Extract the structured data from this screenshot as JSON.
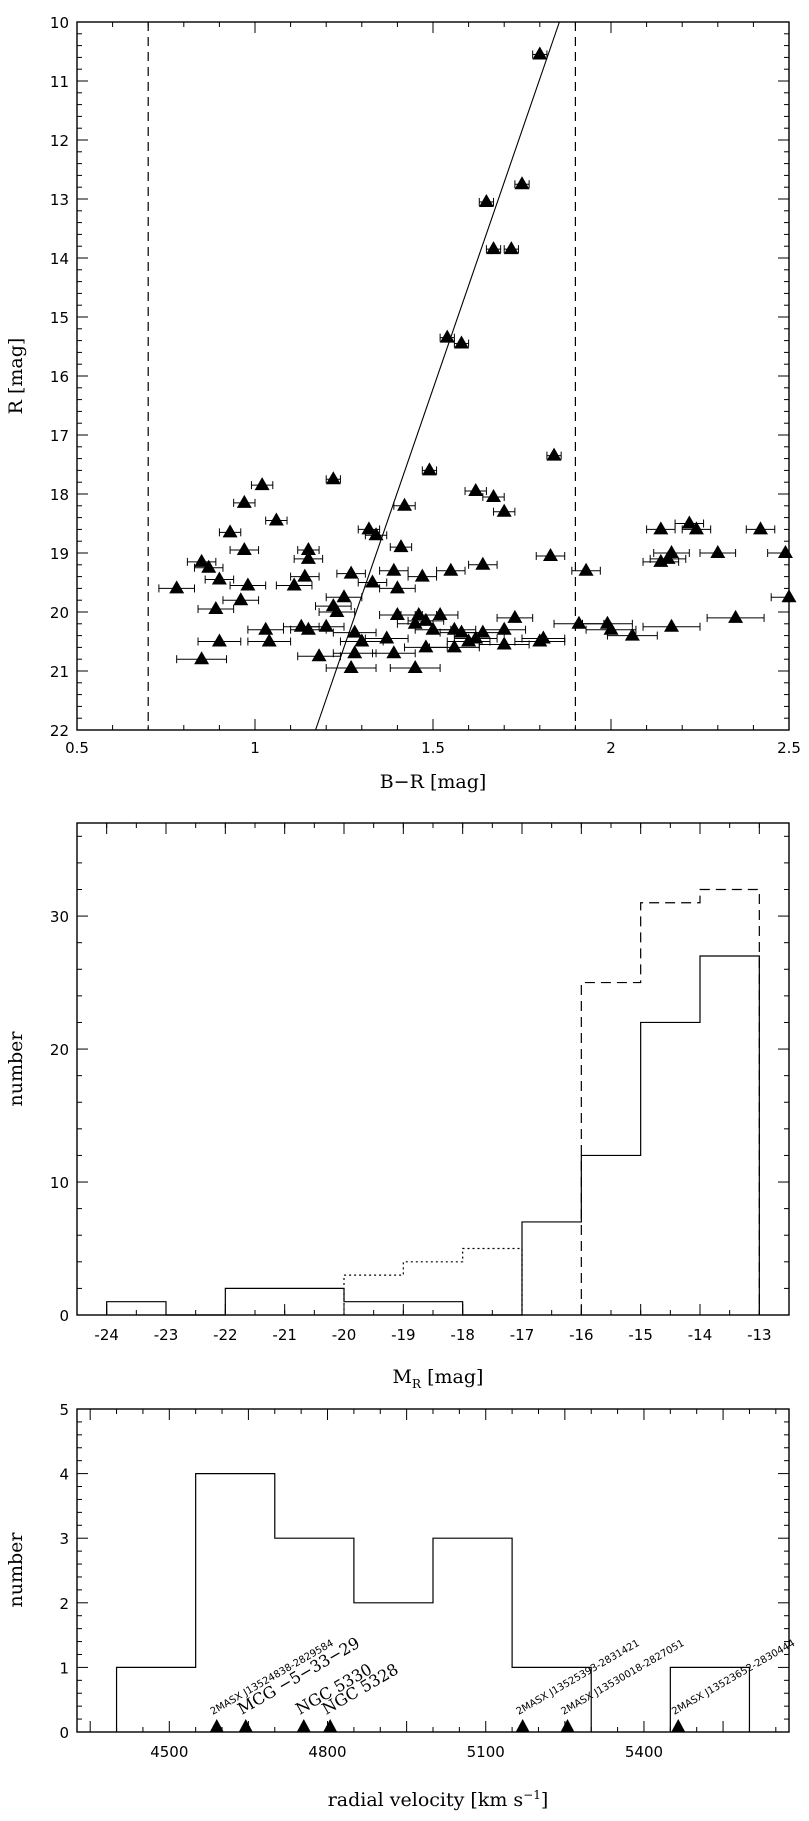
{
  "chart_data": [
    {
      "type": "scatter",
      "xlabel": "B−R [mag]",
      "ylabel": "R [mag]",
      "xlim": [
        0.5,
        2.5
      ],
      "ylim": [
        22,
        10
      ],
      "y_inverted": true,
      "x_ticks": [
        "0.5",
        "1",
        "1.5",
        "2",
        "2.5"
      ],
      "y_ticks": [
        "10",
        "11",
        "12",
        "13",
        "14",
        "15",
        "16",
        "17",
        "18",
        "19",
        "20",
        "21",
        "22"
      ],
      "vertical_dashed_lines_x": [
        0.7,
        1.9
      ],
      "fit_line": {
        "x": [
          1.17,
          1.855
        ],
        "y": [
          22,
          10
        ]
      },
      "points": [
        {
          "x": 1.8,
          "y": 10.55,
          "xerr": 0.02
        },
        {
          "x": 1.65,
          "y": 13.05,
          "xerr": 0.02
        },
        {
          "x": 1.75,
          "y": 12.75,
          "xerr": 0.02
        },
        {
          "x": 1.67,
          "y": 13.85,
          "xerr": 0.02
        },
        {
          "x": 1.72,
          "y": 13.85,
          "xerr": 0.02
        },
        {
          "x": 1.54,
          "y": 15.35,
          "xerr": 0.02
        },
        {
          "x": 1.58,
          "y": 15.45,
          "xerr": 0.02
        },
        {
          "x": 1.84,
          "y": 17.35,
          "xerr": 0.02
        },
        {
          "x": 1.49,
          "y": 17.6,
          "xerr": 0.02
        },
        {
          "x": 1.22,
          "y": 17.75,
          "xerr": 0.02
        },
        {
          "x": 1.02,
          "y": 17.85,
          "xerr": 0.03
        },
        {
          "x": 0.97,
          "y": 18.15,
          "xerr": 0.03
        },
        {
          "x": 1.62,
          "y": 17.95,
          "xerr": 0.03
        },
        {
          "x": 1.67,
          "y": 18.05,
          "xerr": 0.03
        },
        {
          "x": 1.42,
          "y": 18.2,
          "xerr": 0.03
        },
        {
          "x": 1.7,
          "y": 18.3,
          "xerr": 0.03
        },
        {
          "x": 1.06,
          "y": 18.45,
          "xerr": 0.03
        },
        {
          "x": 1.32,
          "y": 18.6,
          "xerr": 0.03
        },
        {
          "x": 0.93,
          "y": 18.65,
          "xerr": 0.03
        },
        {
          "x": 1.34,
          "y": 18.7,
          "xerr": 0.03
        },
        {
          "x": 2.22,
          "y": 18.5,
          "xerr": 0.04
        },
        {
          "x": 2.14,
          "y": 18.6,
          "xerr": 0.04
        },
        {
          "x": 2.24,
          "y": 18.6,
          "xerr": 0.04
        },
        {
          "x": 2.42,
          "y": 18.6,
          "xerr": 0.04
        },
        {
          "x": 1.41,
          "y": 18.9,
          "xerr": 0.03
        },
        {
          "x": 1.15,
          "y": 18.95,
          "xerr": 0.03
        },
        {
          "x": 0.97,
          "y": 18.95,
          "xerr": 0.04
        },
        {
          "x": 2.17,
          "y": 19.0,
          "xerr": 0.05
        },
        {
          "x": 2.3,
          "y": 19.0,
          "xerr": 0.05
        },
        {
          "x": 2.49,
          "y": 19.0,
          "xerr": 0.05
        },
        {
          "x": 1.83,
          "y": 19.05,
          "xerr": 0.04
        },
        {
          "x": 1.15,
          "y": 19.1,
          "xerr": 0.04
        },
        {
          "x": 2.16,
          "y": 19.1,
          "xerr": 0.05
        },
        {
          "x": 2.14,
          "y": 19.15,
          "xerr": 0.05
        },
        {
          "x": 0.85,
          "y": 19.15,
          "xerr": 0.04
        },
        {
          "x": 1.64,
          "y": 19.2,
          "xerr": 0.04
        },
        {
          "x": 0.87,
          "y": 19.25,
          "xerr": 0.04
        },
        {
          "x": 1.55,
          "y": 19.3,
          "xerr": 0.04
        },
        {
          "x": 1.93,
          "y": 19.3,
          "xerr": 0.04
        },
        {
          "x": 1.39,
          "y": 19.3,
          "xerr": 0.04
        },
        {
          "x": 1.27,
          "y": 19.35,
          "xerr": 0.04
        },
        {
          "x": 1.47,
          "y": 19.4,
          "xerr": 0.04
        },
        {
          "x": 1.14,
          "y": 19.4,
          "xerr": 0.04
        },
        {
          "x": 0.9,
          "y": 19.45,
          "xerr": 0.04
        },
        {
          "x": 1.33,
          "y": 19.5,
          "xerr": 0.04
        },
        {
          "x": 0.98,
          "y": 19.55,
          "xerr": 0.05
        },
        {
          "x": 1.11,
          "y": 19.55,
          "xerr": 0.05
        },
        {
          "x": 0.78,
          "y": 19.6,
          "xerr": 0.05
        },
        {
          "x": 1.4,
          "y": 19.6,
          "xerr": 0.05
        },
        {
          "x": 1.25,
          "y": 19.75,
          "xerr": 0.05
        },
        {
          "x": 2.5,
          "y": 19.75,
          "xerr": 0.05
        },
        {
          "x": 0.96,
          "y": 19.8,
          "xerr": 0.05
        },
        {
          "x": 1.22,
          "y": 19.9,
          "xerr": 0.05
        },
        {
          "x": 0.89,
          "y": 19.95,
          "xerr": 0.05
        },
        {
          "x": 1.23,
          "y": 20.0,
          "xerr": 0.05
        },
        {
          "x": 1.4,
          "y": 20.05,
          "xerr": 0.05
        },
        {
          "x": 1.46,
          "y": 20.05,
          "xerr": 0.05
        },
        {
          "x": 1.52,
          "y": 20.05,
          "xerr": 0.05
        },
        {
          "x": 1.73,
          "y": 20.1,
          "xerr": 0.05
        },
        {
          "x": 2.35,
          "y": 20.1,
          "xerr": 0.08
        },
        {
          "x": 1.48,
          "y": 20.15,
          "xerr": 0.05
        },
        {
          "x": 1.45,
          "y": 20.2,
          "xerr": 0.05
        },
        {
          "x": 1.91,
          "y": 20.2,
          "xerr": 0.07
        },
        {
          "x": 1.99,
          "y": 20.2,
          "xerr": 0.07
        },
        {
          "x": 1.03,
          "y": 20.3,
          "xerr": 0.05
        },
        {
          "x": 1.13,
          "y": 20.25,
          "xerr": 0.05
        },
        {
          "x": 1.15,
          "y": 20.3,
          "xerr": 0.05
        },
        {
          "x": 1.2,
          "y": 20.25,
          "xerr": 0.05
        },
        {
          "x": 1.5,
          "y": 20.3,
          "xerr": 0.05
        },
        {
          "x": 1.56,
          "y": 20.3,
          "xerr": 0.06
        },
        {
          "x": 1.58,
          "y": 20.35,
          "xerr": 0.06
        },
        {
          "x": 1.64,
          "y": 20.35,
          "xerr": 0.06
        },
        {
          "x": 1.7,
          "y": 20.3,
          "xerr": 0.06
        },
        {
          "x": 2.0,
          "y": 20.3,
          "xerr": 0.07
        },
        {
          "x": 2.17,
          "y": 20.25,
          "xerr": 0.08
        },
        {
          "x": 1.28,
          "y": 20.35,
          "xerr": 0.06
        },
        {
          "x": 1.37,
          "y": 20.45,
          "xerr": 0.06
        },
        {
          "x": 1.62,
          "y": 20.45,
          "xerr": 0.06
        },
        {
          "x": 1.81,
          "y": 20.45,
          "xerr": 0.06
        },
        {
          "x": 2.06,
          "y": 20.4,
          "xerr": 0.07
        },
        {
          "x": 0.9,
          "y": 20.5,
          "xerr": 0.06
        },
        {
          "x": 1.04,
          "y": 20.5,
          "xerr": 0.06
        },
        {
          "x": 1.3,
          "y": 20.5,
          "xerr": 0.06
        },
        {
          "x": 1.6,
          "y": 20.5,
          "xerr": 0.06
        },
        {
          "x": 1.8,
          "y": 20.5,
          "xerr": 0.07
        },
        {
          "x": 1.7,
          "y": 20.55,
          "xerr": 0.07
        },
        {
          "x": 1.48,
          "y": 20.6,
          "xerr": 0.06
        },
        {
          "x": 1.56,
          "y": 20.6,
          "xerr": 0.07
        },
        {
          "x": 1.28,
          "y": 20.7,
          "xerr": 0.06
        },
        {
          "x": 1.39,
          "y": 20.7,
          "xerr": 0.06
        },
        {
          "x": 1.18,
          "y": 20.75,
          "xerr": 0.06
        },
        {
          "x": 0.85,
          "y": 20.8,
          "xerr": 0.07
        },
        {
          "x": 1.45,
          "y": 20.95,
          "xerr": 0.07
        },
        {
          "x": 1.27,
          "y": 20.95,
          "xerr": 0.07
        }
      ]
    },
    {
      "type": "step-histogram",
      "xlabel_main": "M",
      "xlabel_sub": "R",
      "xlabel_unit": " [mag]",
      "ylabel": "number",
      "xlim": [
        -24.5,
        -12.5
      ],
      "ylim": [
        0,
        37
      ],
      "x_ticks": [
        "-24",
        "-23",
        "-22",
        "-21",
        "-20",
        "-19",
        "-18",
        "-17",
        "-16",
        "-15",
        "-14",
        "-13"
      ],
      "y_ticks": [
        "0",
        "10",
        "20",
        "30"
      ],
      "series": [
        {
          "line": "solid",
          "bins": [
            {
              "from": -24,
              "to": -23,
              "count": 1
            },
            {
              "from": -23,
              "to": -22,
              "count": 0
            },
            {
              "from": -22,
              "to": -21,
              "count": 2
            },
            {
              "from": -21,
              "to": -20,
              "count": 2
            },
            {
              "from": -20,
              "to": -19,
              "count": 1
            },
            {
              "from": -19,
              "to": -18,
              "count": 1
            },
            {
              "from": -18,
              "to": -17,
              "count": 0
            },
            {
              "from": -17,
              "to": -16,
              "count": 7
            },
            {
              "from": -16,
              "to": -15,
              "count": 12
            },
            {
              "from": -15,
              "to": -14,
              "count": 22
            },
            {
              "from": -14,
              "to": -13,
              "count": 27
            }
          ]
        },
        {
          "line": "dotted",
          "bins": [
            {
              "from": -20,
              "to": -19,
              "count": 3
            },
            {
              "from": -19,
              "to": -18,
              "count": 4
            },
            {
              "from": -18,
              "to": -17,
              "count": 5
            }
          ]
        },
        {
          "line": "dashed",
          "bins": [
            {
              "from": -16,
              "to": -15,
              "count": 25
            },
            {
              "from": -15,
              "to": -14,
              "count": 31
            },
            {
              "from": -14,
              "to": -13,
              "count": 32
            }
          ]
        }
      ]
    },
    {
      "type": "step-histogram",
      "xlabel_main": "radial velocity [km s",
      "xlabel_sup": "−1",
      "xlabel_end": "]",
      "ylabel": "number",
      "xlim": [
        4325,
        5675
      ],
      "ylim": [
        0,
        5
      ],
      "x_ticks": [
        "4500",
        "4800",
        "5100",
        "5400"
      ],
      "x_tick_values": [
        4500,
        4800,
        5100,
        5400
      ],
      "y_ticks": [
        "0",
        "1",
        "2",
        "3",
        "4",
        "5"
      ],
      "series": [
        {
          "line": "solid",
          "bins": [
            {
              "from": 4400,
              "to": 4550,
              "count": 1
            },
            {
              "from": 4550,
              "to": 4700,
              "count": 4
            },
            {
              "from": 4700,
              "to": 4850,
              "count": 3
            },
            {
              "from": 4850,
              "to": 5000,
              "count": 2
            },
            {
              "from": 5000,
              "to": 5150,
              "count": 3
            },
            {
              "from": 5150,
              "to": 5300,
              "count": 1
            },
            {
              "from": 5300,
              "to": 5450,
              "count": 0
            },
            {
              "from": 5450,
              "to": 5600,
              "count": 1
            }
          ]
        }
      ],
      "markers": [
        {
          "x": 4590,
          "label": "2MASX J13524838-2829584",
          "size": "small"
        },
        {
          "x": 4645,
          "label": "MCG −5−33−29",
          "size": "big"
        },
        {
          "x": 4755,
          "label": "NGC 5330",
          "size": "big"
        },
        {
          "x": 4805,
          "label": "NGC 5328",
          "size": "big"
        },
        {
          "x": 5170,
          "label": "2MASX J13525393-2831421",
          "size": "small"
        },
        {
          "x": 5255,
          "label": "2MASX J13530018-2827051",
          "size": "small"
        },
        {
          "x": 5465,
          "label": "2MASX J13523652-2830444",
          "size": "small"
        }
      ]
    }
  ]
}
